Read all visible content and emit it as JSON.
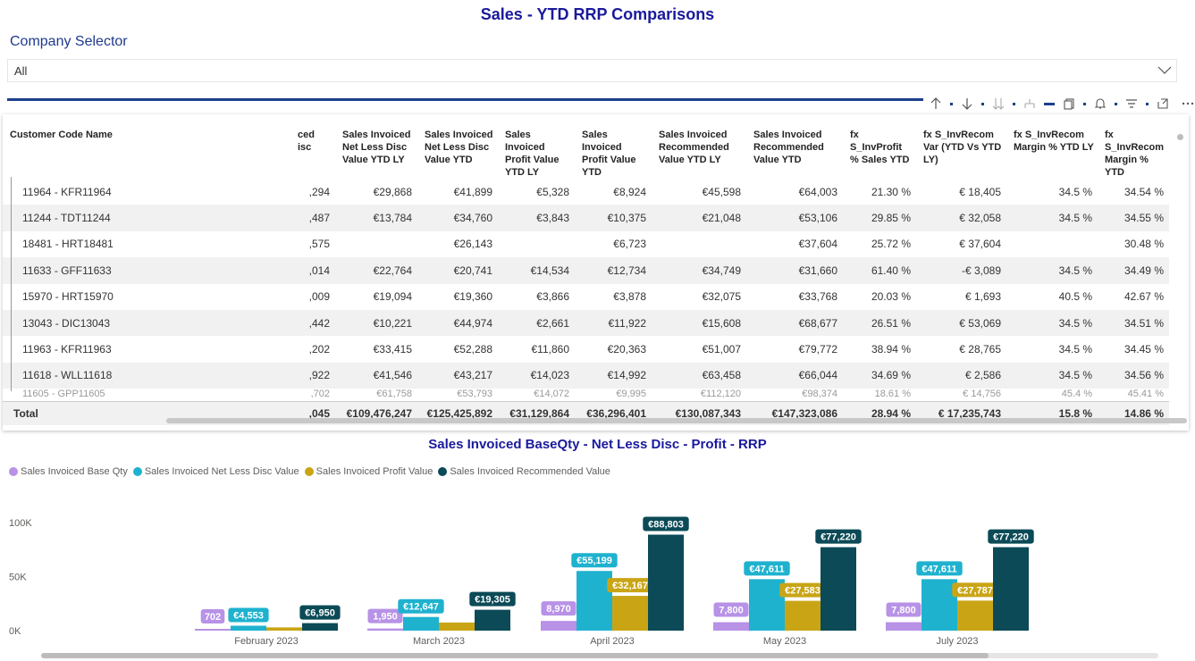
{
  "page_title": "Sales - YTD RRP Comparisons",
  "selector": {
    "label": "Company Selector",
    "value": "All"
  },
  "toolbar": {
    "icons": [
      "arrow-up-icon",
      "arrow-down-icon",
      "double-arrow-down-icon",
      "hierarchy-icon",
      "copy-icon",
      "bell-icon",
      "filter-icon",
      "focus-mode-icon",
      "more-options-icon"
    ]
  },
  "table": {
    "headers": [
      "Customer Code Name",
      "ced\nisc",
      "Sales Invoiced Net Less Disc Value YTD LY",
      "Sales Invoiced Net Less Disc Value YTD",
      "Sales Invoiced Profit Value YTD LY",
      "Sales Invoiced Profit Value YTD",
      "Sales Invoiced Recommended Value YTD LY",
      "Sales Invoiced Recommended Value YTD",
      "fx S_InvProfit % Sales YTD",
      "fx S_InvRecom Var (YTD Vs YTD LY)",
      "fx S_InvRecom Margin % YTD LY",
      "fx S_InvRecom Margin % YTD"
    ],
    "rows": [
      [
        "11964 - KFR11964",
        ",294",
        "€29,868",
        "€41,899",
        "€5,328",
        "€8,924",
        "€45,598",
        "€64,003",
        "21.30 %",
        "€ 18,405",
        "34.5 %",
        "34.54 %"
      ],
      [
        "11244 - TDT11244",
        ",487",
        "€13,784",
        "€34,760",
        "€3,843",
        "€10,375",
        "€21,048",
        "€53,106",
        "29.85 %",
        "€ 32,058",
        "34.5 %",
        "34.55 %"
      ],
      [
        "18481 - HRT18481",
        ",575",
        "",
        "€26,143",
        "",
        "€6,723",
        "",
        "€37,604",
        "25.72 %",
        "€ 37,604",
        "",
        "30.48 %"
      ],
      [
        "11633 - GFF11633",
        ",014",
        "€22,764",
        "€20,741",
        "€14,534",
        "€12,734",
        "€34,749",
        "€31,660",
        "61.40 %",
        "-€ 3,089",
        "34.5 %",
        "34.49 %"
      ],
      [
        "15970 - HRT15970",
        ",009",
        "€19,094",
        "€19,360",
        "€3,866",
        "€3,878",
        "€32,075",
        "€33,768",
        "20.03 %",
        "€ 1,693",
        "40.5 %",
        "42.67 %"
      ],
      [
        "13043 - DIC13043",
        ",442",
        "€10,221",
        "€44,974",
        "€2,661",
        "€11,922",
        "€15,608",
        "€68,677",
        "26.51 %",
        "€ 53,069",
        "34.5 %",
        "34.51 %"
      ],
      [
        "11963 - KFR11963",
        ",202",
        "€33,415",
        "€52,288",
        "€11,860",
        "€20,363",
        "€51,007",
        "€79,772",
        "38.94 %",
        "€ 28,765",
        "34.5 %",
        "34.45 %"
      ],
      [
        "11618 - WLL11618",
        ",922",
        "€41,546",
        "€43,217",
        "€14,023",
        "€14,992",
        "€63,458",
        "€66,044",
        "34.69 %",
        "€ 2,586",
        "34.5 %",
        "34.56 %"
      ]
    ],
    "partial_row": [
      "11605 - GPP11605",
      ",702",
      "€61,758",
      "€53,793",
      "€14,072",
      "€9,995",
      "€112,120",
      "€98,374",
      "18.61 %",
      "€ 14,756",
      "45.4 %",
      "45.41 %"
    ],
    "total": [
      "Total",
      ",045",
      "€109,476,247",
      "€125,425,892",
      "€31,129,864",
      "€36,296,401",
      "€130,087,343",
      "€147,323,086",
      "28.94 %",
      "€ 17,235,743",
      "15.8 %",
      "14.86 %"
    ]
  },
  "chart_data": {
    "type": "bar",
    "title": "Sales Invoiced BaseQty - Net Less Disc - Profit - RRP",
    "categories": [
      "February 2023",
      "March 2023",
      "April 2023",
      "May 2023",
      "July 2023"
    ],
    "series": [
      {
        "name": "Sales Invoiced Base Qty",
        "color": "#b792e6",
        "values": [
          702,
          1950,
          8970,
          7800,
          7800
        ],
        "labels": [
          "702",
          "1,950",
          "8,970",
          "7,800",
          "7,800"
        ]
      },
      {
        "name": "Sales Invoiced Net Less Disc Value",
        "color": "#1fb2cf",
        "values": [
          4553,
          12647,
          55199,
          47611,
          47611
        ],
        "labels": [
          "€4,553",
          "€12,647",
          "€55,199",
          "€47,611",
          "€47,611"
        ]
      },
      {
        "name": "Sales Invoiced Profit Value",
        "color": "#c9a516",
        "values": [
          3000,
          7500,
          32167,
          27583,
          27787
        ],
        "labels": [
          "",
          "",
          "€32,167",
          "€27,583",
          "€27,787"
        ]
      },
      {
        "name": "Sales Invoiced Recommended Value",
        "color": "#0b4a56",
        "values": [
          6950,
          19305,
          88803,
          77220,
          77220
        ],
        "labels": [
          "€6,950",
          "€19,305",
          "€88,803",
          "€77,220",
          "€77,220"
        ]
      }
    ],
    "y_ticks": [
      "0K",
      "50K",
      "100K"
    ],
    "ylim": [
      0,
      100000
    ],
    "legend": "top-left",
    "grid": false
  }
}
